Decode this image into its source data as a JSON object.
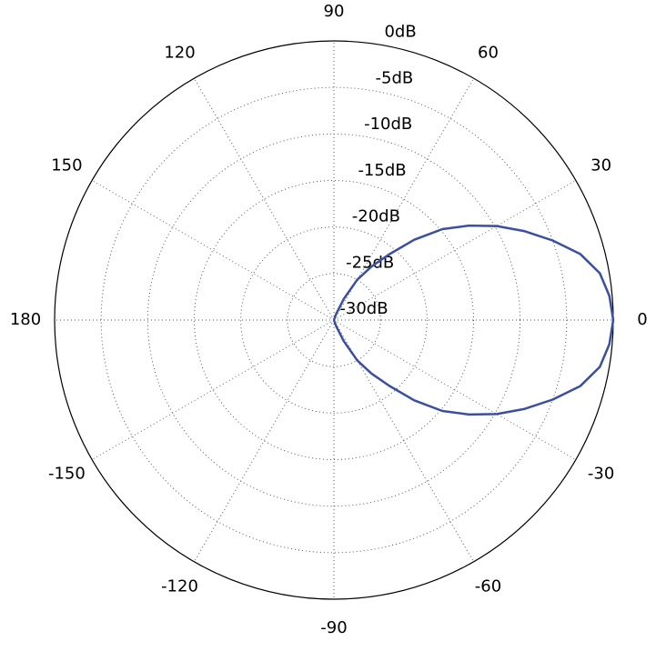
{
  "chart_data": {
    "type": "polar",
    "theta": [
      -90,
      -85,
      -80,
      -75,
      -70,
      -65,
      -60,
      -55,
      -50,
      -45,
      -40,
      -35,
      -30,
      -25,
      -20,
      -15,
      -10,
      -5,
      0,
      5,
      10,
      15,
      20,
      25,
      30,
      35,
      40,
      45,
      50,
      55,
      60,
      65,
      70,
      75,
      80,
      85,
      90
    ],
    "series": [
      {
        "color": "#3a4f9f",
        "values": [
          -30,
          -30,
          -30,
          -30,
          -29.3,
          -27.5,
          -25.0,
          -23.0,
          -20.8,
          -17.8,
          -14.8,
          -12.3,
          -9.8,
          -7.4,
          -5.0,
          -2.6,
          -1.0,
          -0.3,
          0,
          -0.3,
          -1.0,
          -2.6,
          -5.0,
          -7.4,
          -9.8,
          -12.3,
          -14.8,
          -17.8,
          -20.8,
          -23.0,
          -25.0,
          -27.5,
          -29.3,
          -30,
          -30,
          -30,
          -30
        ]
      }
    ],
    "rlim": [
      -30,
      0
    ],
    "rticks": [
      {
        "value": 0,
        "label": "0dB"
      },
      {
        "value": -5,
        "label": "-5dB"
      },
      {
        "value": -10,
        "label": "-10dB"
      },
      {
        "value": -15,
        "label": "-15dB"
      },
      {
        "value": -20,
        "label": "-20dB"
      },
      {
        "value": -25,
        "label": "-25dB"
      },
      {
        "value": -30,
        "label": "-30dB"
      }
    ],
    "thetaticks": [
      0,
      30,
      60,
      90,
      120,
      150,
      180,
      -150,
      -120,
      -90,
      -60,
      -30
    ],
    "grid": true
  }
}
